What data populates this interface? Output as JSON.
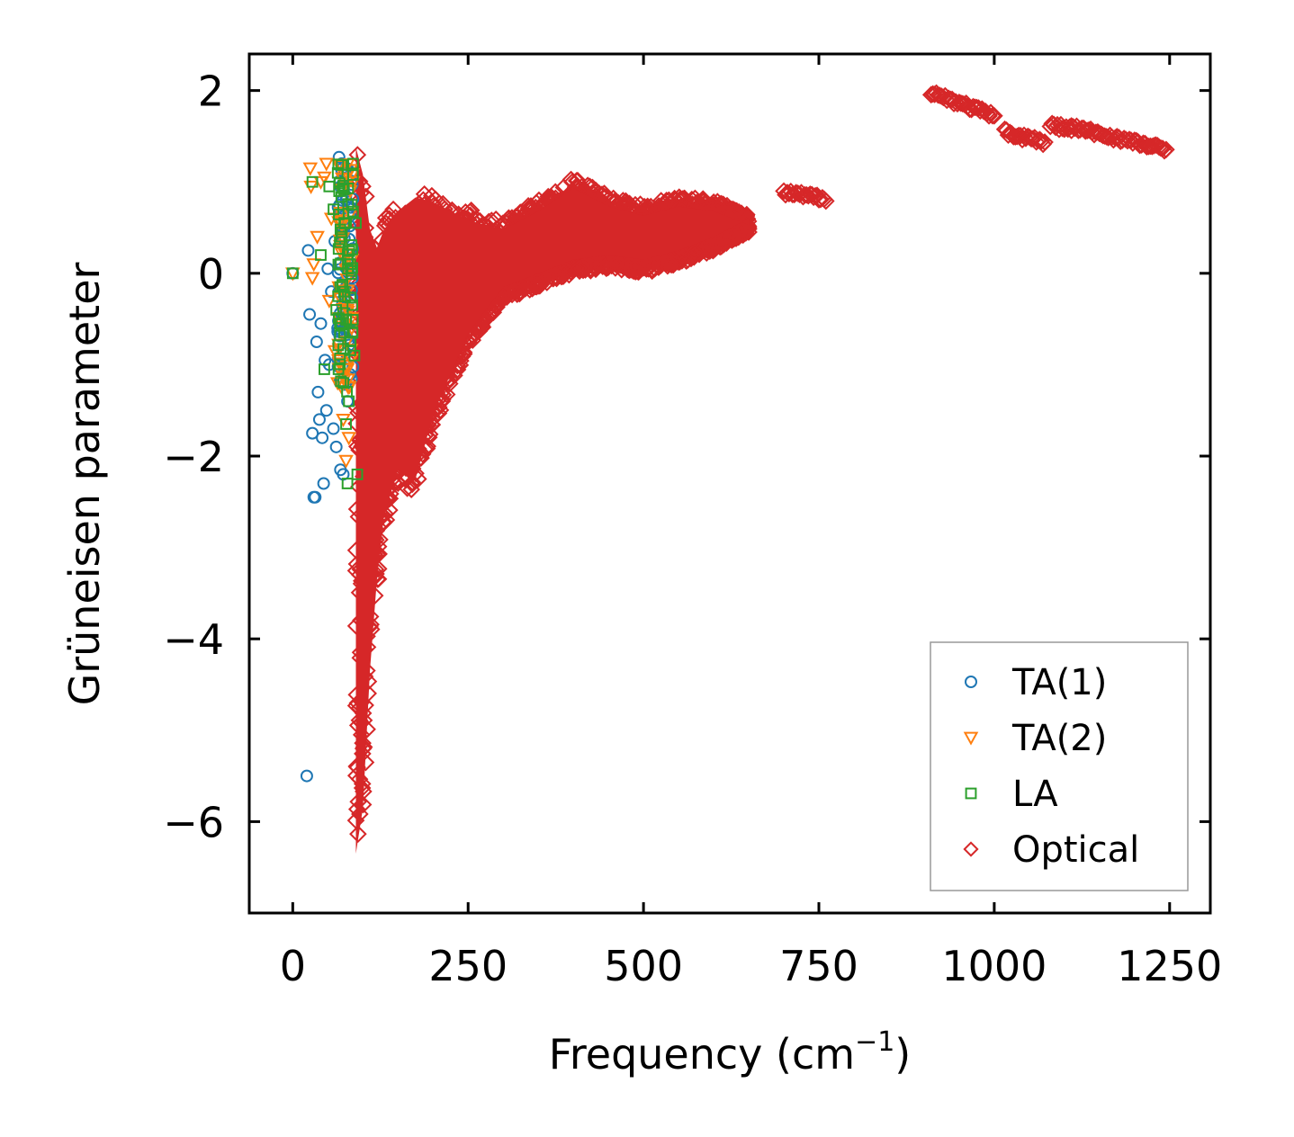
{
  "chart_data": {
    "type": "scatter",
    "title": "",
    "xlabel": "Frequency (cm",
    "xlabel_sup": "−1",
    "xlabel_close": ")",
    "ylabel": "Grüneisen parameter",
    "xlim": [
      -62,
      1308
    ],
    "ylim": [
      -7.0,
      2.4
    ],
    "xticks": [
      0,
      250,
      500,
      750,
      1000,
      1250
    ],
    "xtick_labels": [
      "0",
      "250",
      "500",
      "750",
      "1000",
      "1250"
    ],
    "yticks": [
      2,
      0,
      -2,
      -4,
      -6
    ],
    "ytick_labels": [
      "2",
      "0",
      "−2",
      "−4",
      "−6"
    ],
    "grid": false,
    "legend_position": "bottom-right",
    "series": [
      {
        "name": "TA(1)",
        "marker": "circle",
        "color": "#1f77b4",
        "points": [
          [
            0,
            0
          ],
          [
            20,
            -5.5
          ],
          [
            22,
            0.25
          ],
          [
            24,
            -0.45
          ],
          [
            28,
            -1.75
          ],
          [
            30,
            -2.45
          ],
          [
            32,
            -2.45
          ],
          [
            34,
            -0.75
          ],
          [
            36,
            -1.3
          ],
          [
            38,
            -1.6
          ],
          [
            40,
            -0.55
          ],
          [
            42,
            -1.8
          ],
          [
            44,
            -2.3
          ],
          [
            46,
            -0.95
          ],
          [
            48,
            -1.5
          ],
          [
            50,
            0.05
          ],
          [
            52,
            -1.0
          ],
          [
            55,
            -0.2
          ],
          [
            58,
            -1.7
          ],
          [
            60,
            0.35
          ],
          [
            62,
            -1.9
          ],
          [
            64,
            -0.6
          ],
          [
            66,
            0.6
          ],
          [
            68,
            -2.15
          ],
          [
            70,
            -1.2
          ],
          [
            72,
            -2.2
          ],
          [
            74,
            -0.3
          ],
          [
            76,
            0.8
          ],
          [
            78,
            -1.4
          ],
          [
            80,
            0.0
          ],
          [
            66,
            1.27
          ],
          [
            70,
            1.2
          ],
          [
            74,
            1.1
          ],
          [
            68,
            0.95
          ],
          [
            72,
            0.5
          ],
          [
            76,
            1.15
          ]
        ]
      },
      {
        "name": "TA(2)",
        "marker": "triangle-down",
        "color": "#ff7f0e",
        "points": [
          [
            0,
            0
          ],
          [
            25,
            1.15
          ],
          [
            26,
            0.95
          ],
          [
            28,
            -0.05
          ],
          [
            30,
            0.1
          ],
          [
            35,
            0.4
          ],
          [
            40,
            1.0
          ],
          [
            45,
            1.05
          ],
          [
            48,
            1.2
          ],
          [
            52,
            -0.3
          ],
          [
            55,
            0.6
          ],
          [
            60,
            -0.85
          ],
          [
            64,
            -1.2
          ],
          [
            68,
            0.3
          ],
          [
            72,
            -1.6
          ],
          [
            76,
            -2.05
          ],
          [
            80,
            -1.8
          ],
          [
            82,
            0.9
          ],
          [
            84,
            -0.6
          ],
          [
            86,
            1.0
          ]
        ]
      },
      {
        "name": "LA",
        "marker": "square",
        "color": "#2ca02c",
        "points": [
          [
            0,
            0
          ],
          [
            28,
            1.0
          ],
          [
            40,
            0.2
          ],
          [
            45,
            -1.05
          ],
          [
            52,
            0.95
          ],
          [
            58,
            0.7
          ],
          [
            62,
            -0.4
          ],
          [
            70,
            0.45
          ],
          [
            76,
            -1.65
          ],
          [
            78,
            -2.3
          ],
          [
            80,
            -1.4
          ],
          [
            82,
            0.1
          ],
          [
            84,
            0.75
          ],
          [
            86,
            1.2
          ],
          [
            88,
            -0.9
          ],
          [
            90,
            0.55
          ],
          [
            92,
            -2.2
          ]
        ]
      },
      {
        "name": "Optical",
        "marker": "diamond",
        "color": "#d62728",
        "points": []
      }
    ],
    "optical_envelope": {
      "x": [
        90,
        100,
        110,
        120,
        130,
        150,
        175,
        200,
        250,
        300,
        350,
        400,
        450,
        500,
        550,
        600,
        650
      ],
      "y_upper": [
        1.5,
        1.2,
        0.6,
        0.4,
        0.6,
        0.8,
        0.95,
        0.9,
        0.7,
        0.6,
        0.8,
        1.05,
        0.85,
        0.75,
        0.85,
        0.8,
        0.65
      ],
      "y_lower": [
        -6.5,
        -6.0,
        -4.5,
        -3.5,
        -2.8,
        -2.3,
        -2.4,
        -1.7,
        -0.8,
        -0.3,
        -0.15,
        0.0,
        0.05,
        0.0,
        0.1,
        0.25,
        0.45
      ]
    },
    "optical_bands": [
      {
        "x": [
          700,
          760
        ],
        "y": [
          0.88,
          0.82
        ]
      },
      {
        "x": [
          910,
          1000
        ],
        "y": [
          1.98,
          1.72
        ]
      },
      {
        "x": [
          1015,
          1045
        ],
        "y": [
          1.55,
          1.48
        ]
      },
      {
        "x": [
          1048,
          1072
        ],
        "y": [
          1.5,
          1.42
        ]
      },
      {
        "x": [
          1080,
          1110
        ],
        "y": [
          1.62,
          1.58
        ]
      },
      {
        "x": [
          1110,
          1245
        ],
        "y": [
          1.6,
          1.35
        ]
      }
    ]
  }
}
